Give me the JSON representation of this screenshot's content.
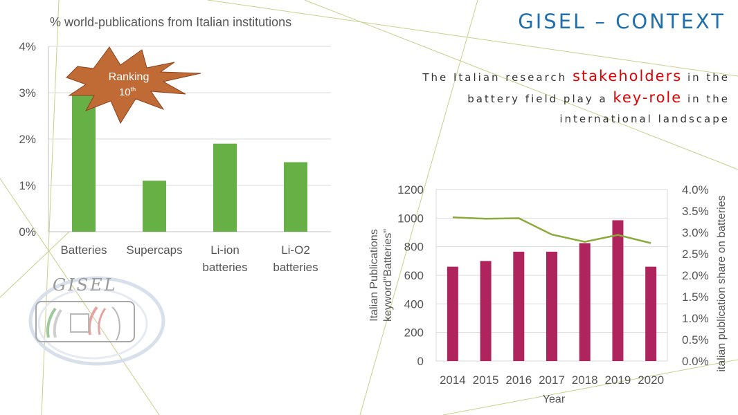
{
  "slide": {
    "title": "GISEL – CONTEXT",
    "subtitle": {
      "part1": "The Italian research ",
      "highlight1": "stakeholders",
      "part2": " in the battery field play a ",
      "highlight2": "key-role",
      "part3": " in the international landscape"
    },
    "logo_text": "GISEL",
    "colors": {
      "title": "#1f6fae",
      "highlight": "#e00000",
      "deco_lines": "#c8cf8a"
    }
  },
  "callout": {
    "text": "Ranking",
    "ordinal_number": "10",
    "ordinal_suffix": "th",
    "color": "#c06a35"
  },
  "chart_data": [
    {
      "type": "bar",
      "title": "% world-publications from Italian institutions",
      "categories": [
        [
          "Batteries"
        ],
        [
          "Supercaps"
        ],
        [
          "Li-ion",
          "batteries"
        ],
        [
          "Li-O2",
          "batteries"
        ]
      ],
      "values": [
        3.0,
        1.1,
        1.9,
        1.5
      ],
      "ylim": [
        0,
        4
      ],
      "yticks": [
        "0%",
        "1%",
        "2%",
        "3%",
        "4%"
      ],
      "grid": true,
      "bar_color": "#66b045"
    },
    {
      "type": "bar+line",
      "categories": [
        "2014",
        "2015",
        "2016",
        "2017",
        "2018",
        "2019",
        "2020"
      ],
      "series": [
        {
          "name": "Italian Publications keyword\"Batteries\"",
          "type": "bar",
          "axis": "left",
          "values": [
            660,
            700,
            765,
            765,
            825,
            985,
            660
          ],
          "color": "#b0245e"
        },
        {
          "name": "italian publication share on batteries",
          "type": "line",
          "axis": "right",
          "values": [
            3.35,
            3.32,
            3.33,
            2.95,
            2.78,
            2.94,
            2.75
          ],
          "color": "#8aaa3a"
        }
      ],
      "xlabel": "Year",
      "ylabel": [
        "Italian Publications",
        "keyword\"Batteries\""
      ],
      "y2label": "italian publication share on batteries",
      "ylim": [
        0,
        1200
      ],
      "yticks": [
        "0",
        "200",
        "400",
        "600",
        "800",
        "1000",
        "1200"
      ],
      "y2lim": [
        0,
        4
      ],
      "y2ticks": [
        "0.0%",
        "0.5%",
        "1.0%",
        "1.5%",
        "2.0%",
        "2.5%",
        "3.0%",
        "3.5%",
        "4.0%"
      ],
      "grid": true
    }
  ]
}
